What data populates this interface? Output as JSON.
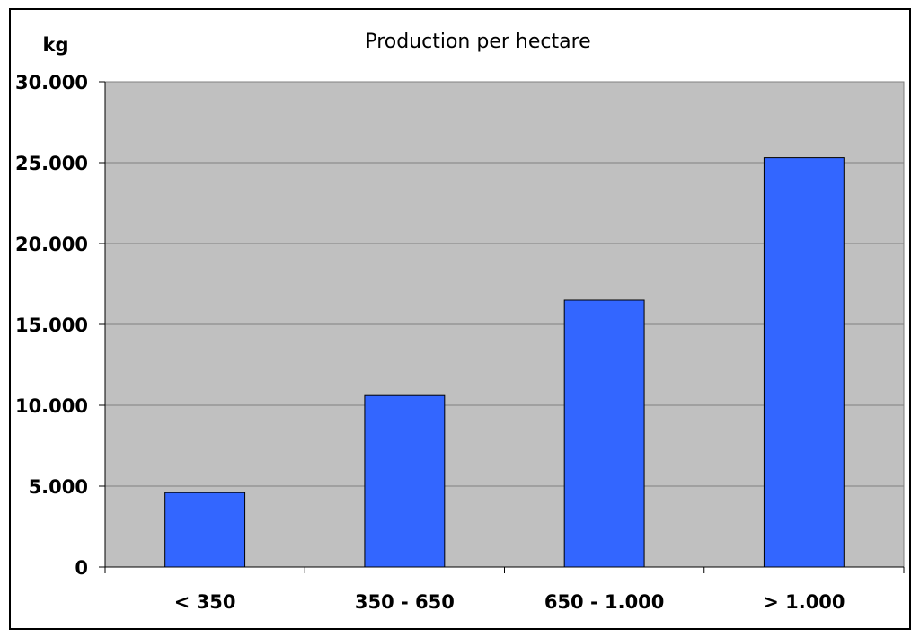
{
  "chart_data": {
    "type": "bar",
    "title": "Production per hectare",
    "unit_label": "kg",
    "xlabel": "",
    "ylabel": "",
    "categories": [
      "< 350",
      "350 - 650",
      "650 - 1.000",
      "> 1.000"
    ],
    "values": [
      4600,
      10600,
      16500,
      25300
    ],
    "ylim": [
      0,
      30000
    ],
    "y_ticks": [
      0,
      5000,
      10000,
      15000,
      20000,
      25000,
      30000
    ],
    "y_tick_labels": [
      "0",
      "5.000",
      "10.000",
      "15.000",
      "20.000",
      "25.000",
      "30.000"
    ],
    "grid": true,
    "legend": "none",
    "colors": {
      "bar": "#3366FF",
      "bar_edge": "#000000",
      "plot_background": "#C0C0C0",
      "gridline": "#808080",
      "frame": "#000000"
    }
  }
}
